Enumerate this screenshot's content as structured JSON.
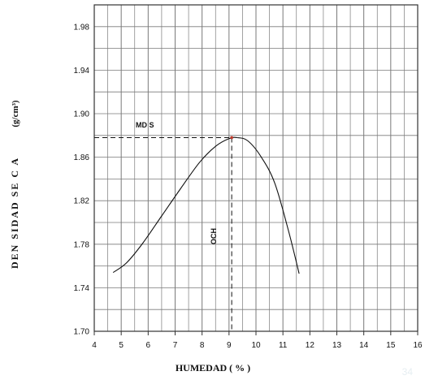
{
  "chart_data": {
    "type": "line",
    "title": "",
    "xlabel": "HUMEDAD ( % )",
    "ylabel_main": "DEN SIDAD  SE C A",
    "ylabel_unit": "(g/cm³)",
    "xlim": [
      4,
      16
    ],
    "ylim": [
      1.7,
      2.0
    ],
    "x_ticks": [
      4,
      5,
      6,
      7,
      8,
      9,
      10,
      11,
      12,
      13,
      14,
      15,
      16
    ],
    "y_ticks": [
      1.7,
      1.74,
      1.78,
      1.82,
      1.86,
      1.9,
      1.94,
      1.98
    ],
    "y_tick_labels": [
      "1.70",
      "1.74",
      "1.78",
      "1.82",
      "1.86",
      "1.90",
      "1.94",
      "1.98"
    ],
    "grid": true,
    "minor_grid_x_step": 0.5,
    "minor_grid_y_step": 0.02,
    "series": [
      {
        "x": [
          4.7,
          5.2,
          5.8,
          6.5,
          7.2,
          7.9,
          8.5,
          9.0,
          9.3,
          9.7,
          10.2,
          10.7,
          11.2,
          11.6
        ],
        "y": [
          1.754,
          1.763,
          1.781,
          1.806,
          1.831,
          1.855,
          1.87,
          1.877,
          1.878,
          1.875,
          1.86,
          1.836,
          1.793,
          1.753
        ]
      }
    ],
    "optimum": {
      "x": 9.1,
      "y": 1.878
    },
    "annotations": {
      "mds": "MD S",
      "och": "OCH"
    },
    "colors": {
      "curve": "#111111",
      "grid": "#7a7a7a",
      "point": "#c0392b"
    }
  },
  "page_number": "34"
}
